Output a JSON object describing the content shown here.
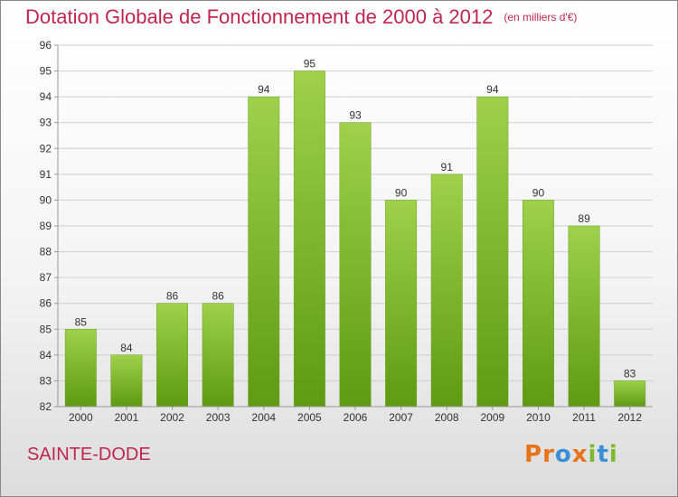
{
  "header": {
    "title": "Dotation Globale de Fonctionnement de 2000 à 2012",
    "unit": "(en milliers d'€)"
  },
  "footer": {
    "commune": "SAINTE-DODE",
    "logo": "Proxiti",
    "logo_letters": [
      "P",
      "r",
      "o",
      "x",
      "i",
      "t",
      "i"
    ],
    "logo_colors": [
      "#e8731a",
      "#e8731a",
      "#3a8fd6",
      "#e8731a",
      "#7dbb2e",
      "#3a8fd6",
      "#7dbb2e"
    ]
  },
  "chart_data": {
    "type": "bar",
    "title": "Dotation Globale de Fonctionnement de 2000 à 2012",
    "categories": [
      "2000",
      "2001",
      "2002",
      "2003",
      "2004",
      "2005",
      "2006",
      "2007",
      "2008",
      "2009",
      "2010",
      "2011",
      "2012"
    ],
    "values": [
      85,
      84,
      86,
      86,
      94,
      95,
      93,
      90,
      91,
      94,
      90,
      89,
      83
    ],
    "ylim": [
      82,
      96
    ],
    "yticks": [
      82,
      83,
      84,
      85,
      86,
      87,
      88,
      89,
      90,
      91,
      92,
      93,
      94,
      95,
      96
    ],
    "grid": true,
    "colors": {
      "bar_top": "#9fd14b",
      "bar_bottom": "#5e9a12",
      "text_accent": "#c0264f"
    }
  }
}
